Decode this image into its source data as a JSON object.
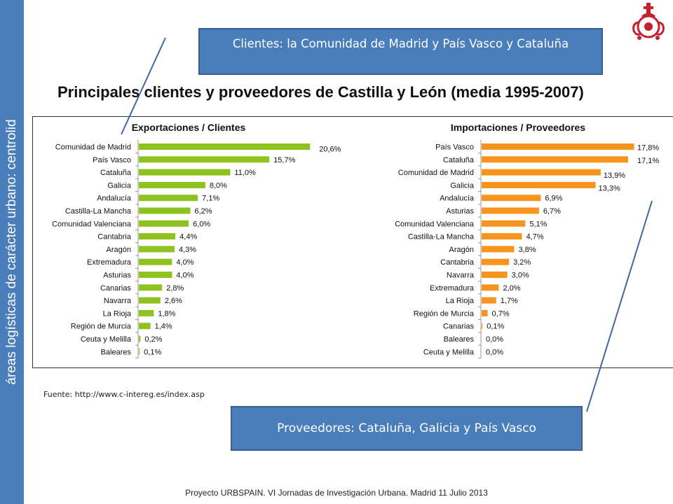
{
  "sidebar": {
    "text": "áreas logísticas de carácter urbano: centrolid"
  },
  "callouts": {
    "top": "Clientes: la Comunidad de Madrid y País Vasco y Cataluña",
    "bottom": "Proveedores: Cataluña, Galicia y País Vasco"
  },
  "title": "Principales clientes y proveedores de Castilla y León (media 1995-2007)",
  "source": "Fuente: http://www.c-intereg.es/index.asp",
  "footer": "Proyecto URBSPAIN. VI  Jornadas de Investigación Urbana. Madrid 11 Julio 2013",
  "chart_data": [
    {
      "type": "bar",
      "orientation": "horizontal",
      "title": "Exportaciones / Clientes",
      "color": "#8dc21f",
      "categories": [
        "Comunidad de Madrid",
        "País Vasco",
        "Cataluña",
        "Galicia",
        "Andalucía",
        "Castilla-La Mancha",
        "Comunidad Valenciana",
        "Cantabria",
        "Aragón",
        "Extremadura",
        "Asturias",
        "Canarias",
        "Navarra",
        "La Rioja",
        "Región de Murcia",
        "Ceuta y Melilla",
        "Baleares"
      ],
      "values": [
        20.6,
        15.7,
        11.0,
        8.0,
        7.1,
        6.2,
        6.0,
        4.4,
        4.3,
        4.0,
        4.0,
        2.8,
        2.6,
        1.8,
        1.4,
        0.2,
        0.1
      ],
      "labels": [
        "20,6%",
        "15,7%",
        "11,0%",
        "8,0%",
        "7,1%",
        "6,2%",
        "6,0%",
        "4,4%",
        "4,3%",
        "4,0%",
        "4,0%",
        "2,8%",
        "2,6%",
        "1,8%",
        "1,4%",
        "0,2%",
        "0,1%"
      ],
      "xlim": [
        0,
        21
      ]
    },
    {
      "type": "bar",
      "orientation": "horizontal",
      "title": "Importaciones / Proveedores",
      "color": "#f7941d",
      "categories": [
        "País Vasco",
        "Cataluña",
        "Comunidad de Madrid",
        "Galicia",
        "Andalucía",
        "Asturias",
        "Comunidad Valenciana",
        "Castilla-La Mancha",
        "Aragón",
        "Cantabria",
        "Navarra",
        "Extremadura",
        "La Rioja",
        "Región de Murcia",
        "Canarias",
        "Baleares",
        "Ceuta y Melilla"
      ],
      "values": [
        17.8,
        17.1,
        13.9,
        13.3,
        6.9,
        6.7,
        5.1,
        4.7,
        3.8,
        3.2,
        3.0,
        2.0,
        1.7,
        0.7,
        0.1,
        0.0,
        0.0
      ],
      "labels": [
        "17,8%",
        "17,1%",
        "13,9%",
        "13,3%",
        "6,9%",
        "6,7%",
        "5,1%",
        "4,7%",
        "3,8%",
        "3,2%",
        "3,0%",
        "2,0%",
        "1,7%",
        "0,7%",
        "0,1%",
        "0,0%",
        "0,0%"
      ],
      "xlim": [
        0,
        18
      ]
    }
  ]
}
